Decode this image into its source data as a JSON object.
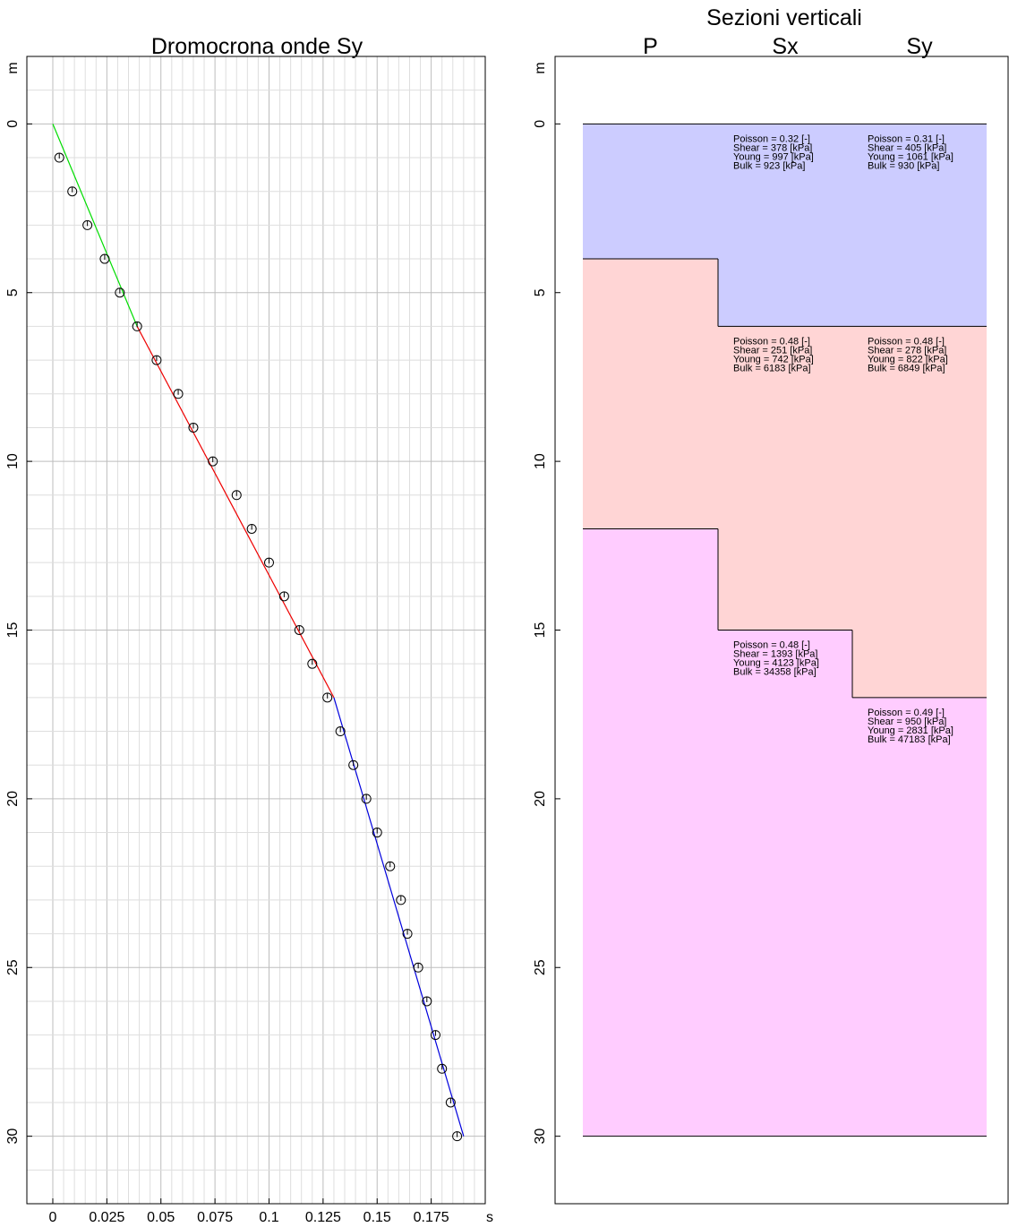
{
  "chart_data": [
    {
      "type": "scatter",
      "title": "Dromocrona onde Sy",
      "xlabel": "s",
      "ylabel": "m",
      "xlim": [
        -0.012,
        0.2
      ],
      "ylim": [
        32,
        -2
      ],
      "y_inverted": true,
      "grid": true,
      "xticks": [
        0,
        0.025,
        0.05,
        0.075,
        0.1,
        0.125,
        0.15,
        0.175
      ],
      "xtick_labels": [
        "0",
        "0.025",
        "0.05",
        "0.075",
        "0.1",
        "0.125",
        "0.15",
        "0.175"
      ],
      "yticks": [
        0,
        5,
        10,
        15,
        20,
        25,
        30
      ],
      "ytick_labels": [
        "0",
        "5",
        "10",
        "15",
        "20",
        "25",
        "30"
      ],
      "points": {
        "x": [
          0.003,
          0.009,
          0.016,
          0.024,
          0.031,
          0.039,
          0.048,
          0.058,
          0.065,
          0.074,
          0.085,
          0.092,
          0.1,
          0.107,
          0.114,
          0.12,
          0.127,
          0.133,
          0.139,
          0.145,
          0.15,
          0.156,
          0.161,
          0.164,
          0.169,
          0.173,
          0.177,
          0.18,
          0.184,
          0.187
        ],
        "y": [
          1,
          2,
          3,
          4,
          5,
          6,
          7,
          8,
          9,
          10,
          11,
          12,
          13,
          14,
          15,
          16,
          17,
          18,
          19,
          20,
          21,
          22,
          23,
          24,
          25,
          26,
          27,
          28,
          29,
          30
        ]
      },
      "segments": [
        {
          "color": "#00dd00",
          "x": [
            0,
            0.039
          ],
          "y": [
            0,
            6
          ]
        },
        {
          "color": "#ee0000",
          "x": [
            0.039,
            0.13
          ],
          "y": [
            6,
            17
          ]
        },
        {
          "color": "#0000dd",
          "x": [
            0.13,
            0.19
          ],
          "y": [
            17,
            30
          ]
        }
      ]
    },
    {
      "type": "table",
      "title": "Sezioni verticali",
      "ylabel": "m",
      "ylim": [
        32,
        -2
      ],
      "yticks": [
        0,
        5,
        10,
        15,
        20,
        25,
        30
      ],
      "ytick_labels": [
        "0",
        "5",
        "10",
        "15",
        "20",
        "25",
        "30"
      ],
      "columns": [
        "P",
        "Sx",
        "Sy"
      ],
      "layer_colors": [
        "#ccccff",
        "#ffd5d5",
        "#ffccff"
      ],
      "sections": [
        {
          "name": "P",
          "boundaries": [
            0,
            4,
            12,
            30
          ],
          "layers": []
        },
        {
          "name": "Sx",
          "boundaries": [
            0,
            6,
            15,
            30
          ],
          "layers": [
            {
              "lines": [
                "Poisson = 0.32 [-]",
                "Shear = 378 [kPa]",
                "Young = 997 [kPa]",
                "Bulk = 923 [kPa]"
              ]
            },
            {
              "lines": [
                "Poisson = 0.48 [-]",
                "Shear = 251 [kPa]",
                "Young = 742 [kPa]",
                "Bulk = 6183 [kPa]"
              ]
            },
            {
              "lines": [
                "Poisson = 0.48 [-]",
                "Shear = 1393 [kPa]",
                "Young = 4123 [kPa]",
                "Bulk = 34358 [kPa]"
              ]
            }
          ]
        },
        {
          "name": "Sy",
          "boundaries": [
            0,
            6,
            17,
            30
          ],
          "layers": [
            {
              "lines": [
                "Poisson = 0.31 [-]",
                "Shear = 405 [kPa]",
                "Young = 1061 [kPa]",
                "Bulk = 930 [kPa]"
              ]
            },
            {
              "lines": [
                "Poisson = 0.48 [-]",
                "Shear = 278 [kPa]",
                "Young = 822 [kPa]",
                "Bulk = 6849 [kPa]"
              ]
            },
            {
              "lines": [
                "Poisson = 0.49 [-]",
                "Shear = 950 [kPa]",
                "Young = 2831 [kPa]",
                "Bulk = 47183 [kPa]"
              ]
            }
          ]
        }
      ]
    }
  ]
}
